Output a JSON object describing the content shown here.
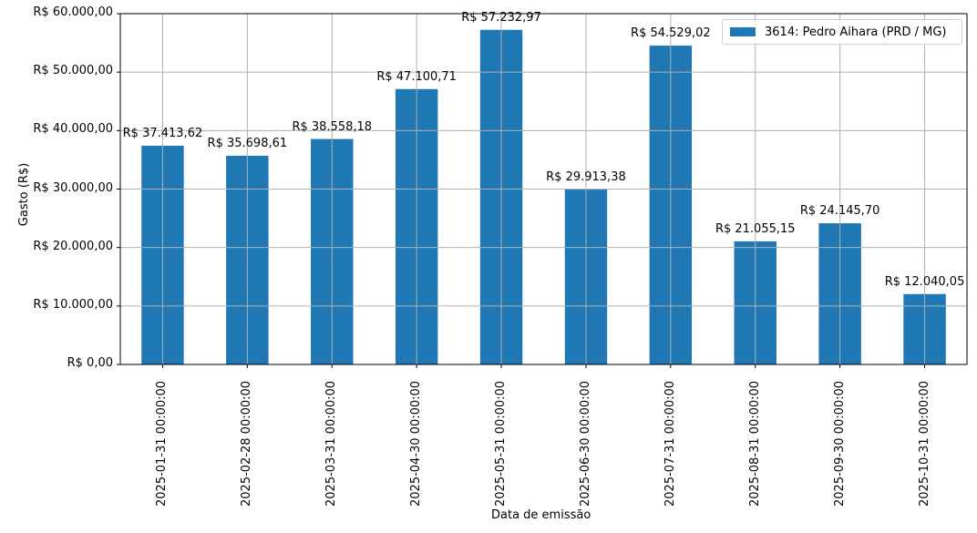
{
  "chart_data": {
    "type": "bar",
    "title": "",
    "xlabel": "Data de emissão",
    "ylabel": "Gasto (R$)",
    "ylim": [
      0,
      60000
    ],
    "grid": true,
    "legend_position": "upper right",
    "bar_color": "#1f77b4",
    "categories": [
      "2025-01-31 00:00:00",
      "2025-02-28 00:00:00",
      "2025-03-31 00:00:00",
      "2025-04-30 00:00:00",
      "2025-05-31 00:00:00",
      "2025-06-30 00:00:00",
      "2025-07-31 00:00:00",
      "2025-08-31 00:00:00",
      "2025-09-30 00:00:00",
      "2025-10-31 00:00:00"
    ],
    "series": [
      {
        "name": "3614: Pedro Aihara (PRD / MG)",
        "values": [
          37413.62,
          35698.61,
          38558.18,
          47100.71,
          57232.97,
          29913.38,
          54529.02,
          21055.15,
          24145.7,
          12040.05
        ],
        "labels": [
          "R$ 37.413,62",
          "R$ 35.698,61",
          "R$ 38.558,18",
          "R$ 47.100,71",
          "R$ 57.232,97",
          "R$ 29.913,38",
          "R$ 54.529,02",
          "R$ 21.055,15",
          "R$ 24.145,70",
          "R$ 12.040,05"
        ]
      }
    ],
    "yticks": [
      0,
      10000,
      20000,
      30000,
      40000,
      50000,
      60000
    ],
    "ytick_labels": [
      "R$ 0,00",
      "R$ 10.000,00",
      "R$ 20.000,00",
      "R$ 30.000,00",
      "R$ 40.000,00",
      "R$ 50.000,00",
      "R$ 60.000,00"
    ]
  }
}
